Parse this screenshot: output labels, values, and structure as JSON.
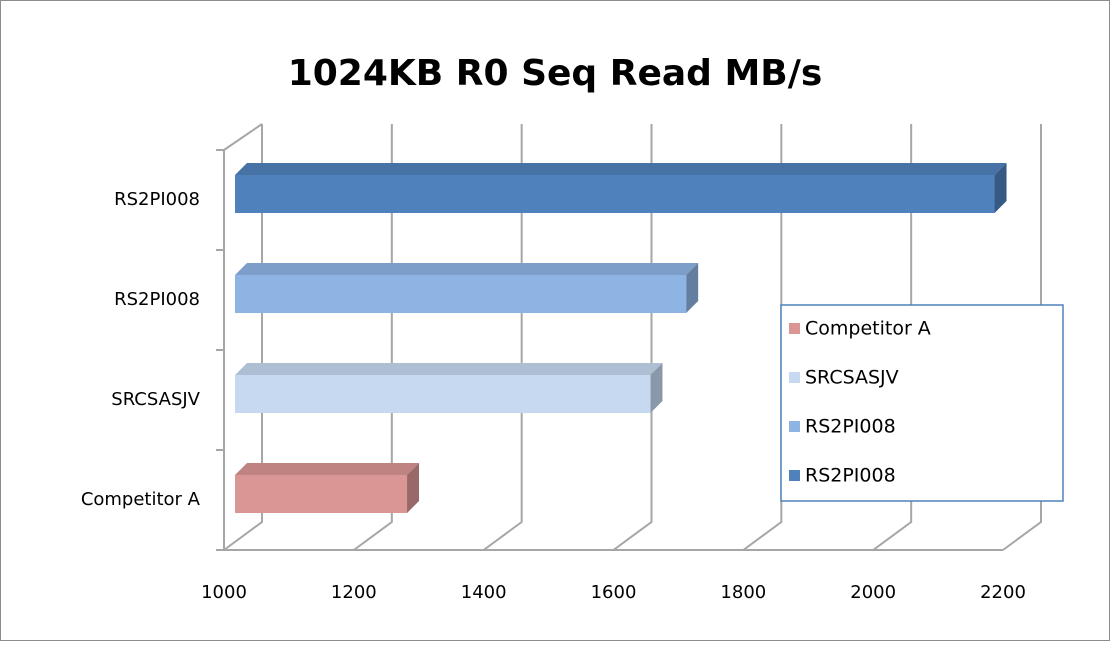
{
  "chart_data": {
    "type": "bar3d_horizontal",
    "title": "1024KB R0 Seq Read MB/s",
    "categories": [
      "Competitor A",
      "SRCSASJV",
      "RS2PI008",
      "RS2PI008"
    ],
    "values": [
      1265,
      1640,
      1695,
      2170
    ],
    "colors": [
      "#d99694",
      "#c6d9f1",
      "#8eb4e3",
      "#4f81bd"
    ],
    "xlim": [
      1000,
      2200
    ],
    "xticks": [
      1000,
      1200,
      1400,
      1600,
      1800,
      2000,
      2200
    ],
    "grid": true,
    "legend": "right"
  }
}
